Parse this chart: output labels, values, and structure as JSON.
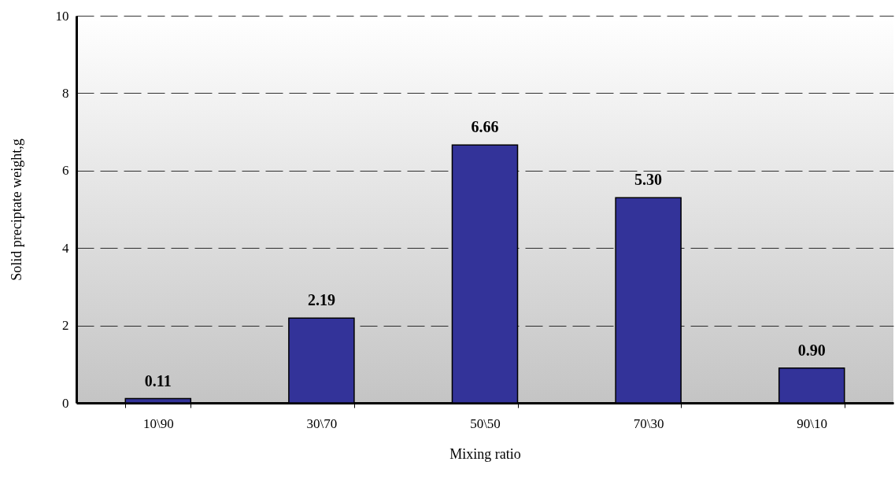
{
  "chart_data": {
    "type": "bar",
    "xlabel": "Mixing ratio",
    "ylabel": "Solid preciptate weight,g",
    "categories": [
      "10\\90",
      "30\\70",
      "50\\50",
      "70\\30",
      "90\\10"
    ],
    "values": [
      0.11,
      2.19,
      6.66,
      5.3,
      0.9
    ],
    "value_labels": [
      "0.11",
      "2.19",
      "6.66",
      "5.30",
      "0.90"
    ],
    "color": "#333399",
    "ylim": [
      0,
      10
    ],
    "yticks": [
      0,
      2,
      4,
      6,
      8,
      10
    ],
    "grid": "y"
  }
}
